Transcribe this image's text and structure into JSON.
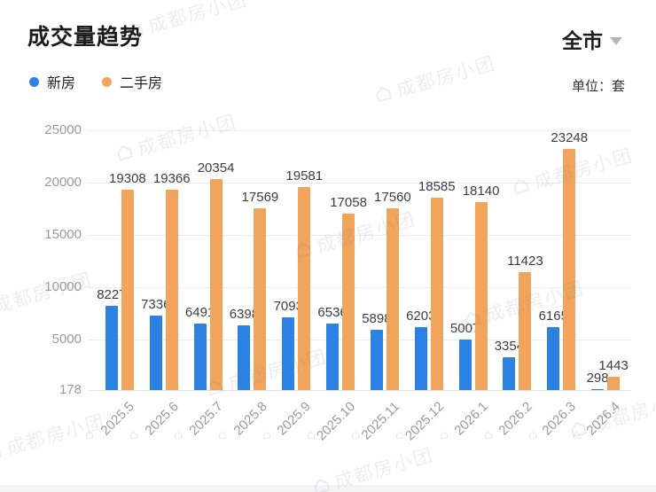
{
  "header": {
    "title": "成交量趋势",
    "region_selector": "全市",
    "unit_label": "单位：套"
  },
  "watermark": {
    "text": "成都房小团"
  },
  "chart_data": {
    "type": "bar",
    "title": "成交量趋势",
    "categories": [
      "2025.5",
      "2025.6",
      "2025.7",
      "2025.8",
      "2025.9",
      "2025.10",
      "2025.11",
      "2025.12",
      "2026.1",
      "2026.2",
      "2026.3",
      "2026.4"
    ],
    "series": [
      {
        "name": "新房",
        "color": "#2B82E3",
        "values": [
          8227,
          7336,
          6491,
          6398,
          7093,
          6536,
          5898,
          6203,
          5007,
          3354,
          6165,
          298
        ]
      },
      {
        "name": "二手房",
        "color": "#F0A45C",
        "values": [
          19308,
          19366,
          20354,
          17569,
          19581,
          17058,
          17560,
          18585,
          18140,
          11423,
          23248,
          1443
        ]
      }
    ],
    "xlabel": "",
    "ylabel": "套",
    "y_min": 178,
    "y_max": 25000,
    "y_ticks": [
      178,
      5000,
      10000,
      15000,
      20000,
      25000
    ],
    "grid": true,
    "legend_position": "top-left",
    "value_labels": true
  }
}
